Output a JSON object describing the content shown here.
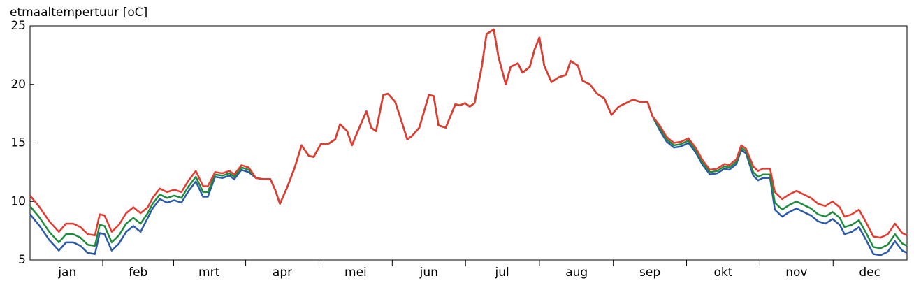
{
  "chart_data": {
    "type": "line",
    "title": "etmaaltempertuur [oC]",
    "x": [
      0,
      4,
      8,
      12,
      15,
      18,
      21,
      24,
      27,
      29,
      31,
      34,
      37,
      40,
      43,
      46,
      49,
      51,
      54,
      57,
      60,
      63,
      66,
      69,
      72,
      74,
      77,
      80,
      83,
      85,
      88,
      91,
      94,
      97,
      100,
      102,
      104,
      107,
      110,
      113,
      116,
      118,
      121,
      124,
      127,
      129,
      132,
      134,
      136,
      140,
      142,
      144,
      147,
      149,
      152,
      155,
      157,
      159,
      162,
      166,
      168,
      170,
      173,
      177,
      179,
      181,
      183,
      185,
      188,
      190,
      193,
      195,
      198,
      200,
      203,
      205,
      208,
      210,
      212,
      214,
      217,
      220,
      223,
      225,
      228,
      230,
      233,
      236,
      239,
      242,
      245,
      248,
      251,
      254,
      257,
      259,
      262,
      265,
      268,
      271,
      274,
      277,
      280,
      283,
      286,
      289,
      291,
      294,
      296,
      298,
      301,
      303,
      305,
      308,
      310,
      313,
      316,
      319,
      322,
      325,
      328,
      331,
      334,
      337,
      339,
      342,
      345,
      348,
      351,
      354,
      357,
      360,
      363,
      365
    ],
    "series": [
      {
        "color": "#2b5aa8",
        "values": [
          8.9,
          7.9,
          6.7,
          5.8,
          6.5,
          6.5,
          6.2,
          5.6,
          5.5,
          7.3,
          7.2,
          5.8,
          6.4,
          7.4,
          7.9,
          7.4,
          8.6,
          9.4,
          10.2,
          9.9,
          10.1,
          9.9,
          10.9,
          11.7,
          10.4,
          10.4,
          12.1,
          12.0,
          12.2,
          11.9,
          12.7,
          12.5,
          12.0,
          11.9,
          11.9,
          11.0,
          9.8,
          11.2,
          12.8,
          14.8,
          13.9,
          13.8,
          14.9,
          14.9,
          15.3,
          16.6,
          16.0,
          14.8,
          15.8,
          17.7,
          16.3,
          16.0,
          19.1,
          19.2,
          18.5,
          16.6,
          15.3,
          15.6,
          16.3,
          19.1,
          19.0,
          16.5,
          16.3,
          18.3,
          18.2,
          18.4,
          18.1,
          18.4,
          21.5,
          24.3,
          24.7,
          22.3,
          20.0,
          21.5,
          21.8,
          21.0,
          21.5,
          23.0,
          24.0,
          21.6,
          20.2,
          20.6,
          20.8,
          22.0,
          21.6,
          20.3,
          20.0,
          19.2,
          18.8,
          17.4,
          18.1,
          18.4,
          18.7,
          18.5,
          18.5,
          17.3,
          16.1,
          15.1,
          14.6,
          14.7,
          15.0,
          14.2,
          13.1,
          12.3,
          12.4,
          12.8,
          12.7,
          13.2,
          14.4,
          14.1,
          12.2,
          11.8,
          12.0,
          12.0,
          9.3,
          8.7,
          9.1,
          9.4,
          9.1,
          8.8,
          8.3,
          8.1,
          8.5,
          8.0,
          7.2,
          7.4,
          7.8,
          6.7,
          5.5,
          5.4,
          5.7,
          6.6,
          5.8,
          5.6
        ]
      },
      {
        "color": "#1e8c3c",
        "values": [
          9.6,
          8.6,
          7.4,
          6.5,
          7.2,
          7.2,
          6.9,
          6.3,
          6.2,
          8.0,
          7.9,
          6.5,
          7.1,
          8.1,
          8.6,
          8.1,
          9.0,
          9.8,
          10.6,
          10.3,
          10.5,
          10.3,
          11.3,
          12.1,
          10.8,
          10.8,
          12.3,
          12.2,
          12.4,
          12.1,
          12.9,
          12.7,
          12.0,
          11.9,
          11.9,
          11.0,
          9.8,
          11.2,
          12.8,
          14.8,
          13.9,
          13.8,
          14.9,
          14.9,
          15.3,
          16.6,
          16.0,
          14.8,
          15.8,
          17.7,
          16.3,
          16.0,
          19.1,
          19.2,
          18.5,
          16.6,
          15.3,
          15.6,
          16.3,
          19.1,
          19.0,
          16.5,
          16.3,
          18.3,
          18.2,
          18.4,
          18.1,
          18.4,
          21.5,
          24.3,
          24.7,
          22.3,
          20.0,
          21.5,
          21.8,
          21.0,
          21.5,
          23.0,
          24.0,
          21.6,
          20.2,
          20.6,
          20.8,
          22.0,
          21.6,
          20.3,
          20.0,
          19.2,
          18.8,
          17.4,
          18.1,
          18.4,
          18.7,
          18.5,
          18.5,
          17.3,
          16.3,
          15.3,
          14.8,
          14.9,
          15.2,
          14.4,
          13.3,
          12.5,
          12.6,
          13.0,
          12.9,
          13.4,
          14.6,
          14.3,
          12.5,
          12.1,
          12.3,
          12.3,
          9.9,
          9.3,
          9.7,
          10.0,
          9.7,
          9.4,
          8.9,
          8.7,
          9.1,
          8.6,
          7.8,
          8.0,
          8.4,
          7.3,
          6.1,
          6.0,
          6.3,
          7.2,
          6.4,
          6.2
        ]
      },
      {
        "color": "#e8392f",
        "values": [
          10.5,
          9.5,
          8.3,
          7.4,
          8.1,
          8.1,
          7.8,
          7.2,
          7.1,
          8.9,
          8.8,
          7.4,
          8.0,
          9.0,
          9.5,
          9.0,
          9.5,
          10.3,
          11.1,
          10.8,
          11.0,
          10.8,
          11.8,
          12.6,
          11.3,
          11.3,
          12.5,
          12.4,
          12.6,
          12.3,
          13.1,
          12.9,
          12.0,
          11.9,
          11.9,
          11.0,
          9.8,
          11.2,
          12.8,
          14.8,
          13.9,
          13.8,
          14.9,
          14.9,
          15.3,
          16.6,
          16.0,
          14.8,
          15.8,
          17.7,
          16.3,
          16.0,
          19.1,
          19.2,
          18.5,
          16.6,
          15.3,
          15.6,
          16.3,
          19.1,
          19.0,
          16.5,
          16.3,
          18.3,
          18.2,
          18.4,
          18.1,
          18.4,
          21.5,
          24.3,
          24.7,
          22.3,
          20.0,
          21.5,
          21.8,
          21.0,
          21.5,
          23.0,
          24.0,
          21.6,
          20.2,
          20.6,
          20.8,
          22.0,
          21.6,
          20.3,
          20.0,
          19.2,
          18.8,
          17.4,
          18.1,
          18.4,
          18.7,
          18.5,
          18.5,
          17.3,
          16.5,
          15.5,
          15.0,
          15.1,
          15.4,
          14.6,
          13.5,
          12.7,
          12.8,
          13.2,
          13.1,
          13.6,
          14.8,
          14.5,
          13.0,
          12.6,
          12.8,
          12.8,
          10.8,
          10.2,
          10.6,
          10.9,
          10.6,
          10.3,
          9.8,
          9.6,
          10.0,
          9.5,
          8.7,
          8.9,
          9.3,
          8.2,
          7.0,
          6.9,
          7.2,
          8.1,
          7.3,
          7.1
        ]
      }
    ],
    "xlim": [
      0,
      365
    ],
    "xticks": [
      {
        "value": 15.5,
        "label": "jan"
      },
      {
        "value": 45,
        "label": "feb"
      },
      {
        "value": 74.5,
        "label": "mrt"
      },
      {
        "value": 105,
        "label": "apr"
      },
      {
        "value": 135.5,
        "label": "mei"
      },
      {
        "value": 166,
        "label": "jun"
      },
      {
        "value": 196.5,
        "label": "jul"
      },
      {
        "value": 227.5,
        "label": "aug"
      },
      {
        "value": 258,
        "label": "sep"
      },
      {
        "value": 288.5,
        "label": "okt"
      },
      {
        "value": 319,
        "label": "nov"
      },
      {
        "value": 349.5,
        "label": "dec"
      }
    ],
    "ylim": [
      5,
      25
    ],
    "yticks": [
      5,
      10,
      15,
      20,
      25
    ],
    "grid": false
  }
}
